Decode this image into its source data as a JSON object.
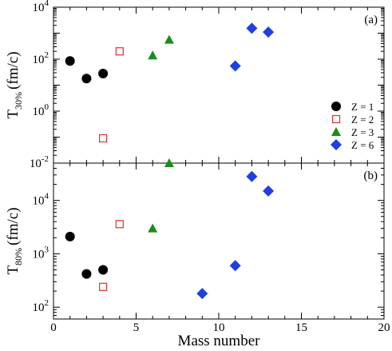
{
  "chart_data": {
    "type": "scatter",
    "xlabel": "Mass number",
    "xlim": [
      0,
      20
    ],
    "xticks": [
      "0",
      "5",
      "10",
      "15",
      "20"
    ],
    "legend": {
      "placement": "right-lower of top panel",
      "entries": [
        {
          "label": "Z = 1",
          "marker": "circle-filled",
          "color": "#000000"
        },
        {
          "label": "Z = 2",
          "marker": "square-open",
          "color": "#e03030"
        },
        {
          "label": "Z = 3",
          "marker": "triangle-filled",
          "color": "#1a8c1a"
        },
        {
          "label": "Z = 6",
          "marker": "diamond-filled",
          "color": "#1f3fe0"
        }
      ]
    },
    "panels": [
      {
        "tag": "(a)",
        "ylabel_main": "T",
        "ylabel_sub": "30%",
        "ylabel_unit": "(fm/c)",
        "yscale": "log",
        "ylim": [
          0.01,
          10000
        ],
        "yticks": [
          {
            "value": 0.01,
            "base": "10",
            "exp": "-2"
          },
          {
            "value": 1,
            "base": "10",
            "exp": "0"
          },
          {
            "value": 100,
            "base": "10",
            "exp": "2"
          },
          {
            "value": 10000,
            "base": "10",
            "exp": "4"
          }
        ],
        "series": [
          {
            "name": "Z = 1",
            "points": [
              [
                1,
                85
              ],
              [
                2,
                18
              ],
              [
                3,
                28
              ]
            ]
          },
          {
            "name": "Z = 2",
            "points": [
              [
                3,
                0.09
              ],
              [
                4,
                200
              ]
            ]
          },
          {
            "name": "Z = 3",
            "points": [
              [
                6,
                140
              ],
              [
                7,
                560
              ]
            ]
          },
          {
            "name": "Z = 6",
            "points": [
              [
                11,
                55
              ],
              [
                12,
                1550
              ],
              [
                13,
                1100
              ]
            ]
          }
        ]
      },
      {
        "tag": "(b)",
        "ylabel_main": "T",
        "ylabel_sub": "80%",
        "ylabel_unit": "(fm/c)",
        "yscale": "log",
        "ylim": [
          60,
          50000
        ],
        "yticks": [
          {
            "value": 100,
            "base": "10",
            "exp": "2"
          },
          {
            "value": 1000,
            "base": "10",
            "exp": "3"
          },
          {
            "value": 10000,
            "base": "10",
            "exp": "4"
          }
        ],
        "series": [
          {
            "name": "Z = 1",
            "points": [
              [
                1,
                2100
              ],
              [
                2,
                420
              ],
              [
                3,
                500
              ]
            ]
          },
          {
            "name": "Z = 2",
            "points": [
              [
                3,
                240
              ],
              [
                4,
                3600
              ]
            ]
          },
          {
            "name": "Z = 3",
            "points": [
              [
                6,
                3000
              ],
              [
                7,
                50000
              ]
            ]
          },
          {
            "name": "Z = 6",
            "points": [
              [
                9,
                180
              ],
              [
                11,
                600
              ],
              [
                12,
                28000
              ],
              [
                13,
                15000
              ]
            ]
          }
        ]
      }
    ]
  }
}
